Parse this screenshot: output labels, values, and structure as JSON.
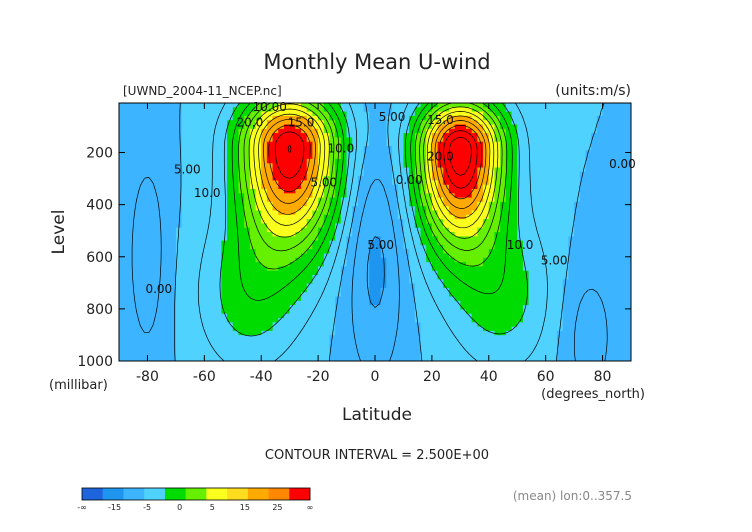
{
  "chart_data": {
    "type": "contour",
    "title": "Monthly Mean U-wind",
    "file_label": "[UWND_2004-11_NCEP.nc]",
    "units_label": "(units:m/s)",
    "xlabel": "Latitude",
    "x_unit": "(degrees_north)",
    "ylabel": "Level",
    "y_unit": "(millibar)",
    "xlim": [
      -90,
      90
    ],
    "ylim": [
      1000,
      10
    ],
    "x_ticks": [
      -80,
      -60,
      -40,
      -20,
      0,
      20,
      40,
      60,
      80
    ],
    "y_ticks": [
      200,
      400,
      600,
      800,
      1000
    ],
    "x_tick_labels": [
      "-80",
      "-60",
      "-40",
      "-20",
      "0",
      "20",
      "40",
      "60",
      "80"
    ],
    "y_tick_labels": [
      "200",
      "400",
      "600",
      "800",
      "1000"
    ],
    "contour_interval_label": "CONTOUR INTERVAL = 2.500E+00",
    "footer_label": "(mean) lon:0..357.5",
    "jets": [
      {
        "lat": -30,
        "level": 180,
        "max": 30
      },
      {
        "lat": 30,
        "level": 190,
        "max": 32
      }
    ],
    "contour_labels": [
      {
        "text": "10.00",
        "lat": -37,
        "level": 40
      },
      {
        "text": "20.0",
        "lat": -44,
        "level": 100
      },
      {
        "text": "15.0",
        "lat": -26,
        "level": 100
      },
      {
        "text": "10.0",
        "lat": -12,
        "level": 200
      },
      {
        "text": "5.00",
        "lat": -18,
        "level": 330
      },
      {
        "text": "5.00",
        "lat": -66,
        "level": 280
      },
      {
        "text": "10.0",
        "lat": -59,
        "level": 370
      },
      {
        "text": "0.00",
        "lat": -76,
        "level": 740
      },
      {
        "text": "5.00",
        "lat": 6,
        "level": 80
      },
      {
        "text": "15.0",
        "lat": 23,
        "level": 90
      },
      {
        "text": "0.00",
        "lat": 12,
        "level": 320
      },
      {
        "text": "20.0",
        "lat": 23,
        "level": 230
      },
      {
        "text": "5.00",
        "lat": 2,
        "level": 570
      },
      {
        "text": "10.0",
        "lat": 51,
        "level": 570
      },
      {
        "text": "5.00",
        "lat": 63,
        "level": 630
      },
      {
        "text": "0.00",
        "lat": 87,
        "level": 260
      }
    ],
    "colorbar": {
      "labels": [
        "-∞",
        "-15",
        "-5",
        "0",
        "5",
        "15",
        "25",
        "∞"
      ],
      "colors": [
        "#1e64dc",
        "#1e96f0",
        "#3cb4ff",
        "#50d2ff",
        "#00dc00",
        "#64f000",
        "#faff1e",
        "#ffdc1e",
        "#ffaa00",
        "#ff8800",
        "#ff0000"
      ]
    }
  }
}
